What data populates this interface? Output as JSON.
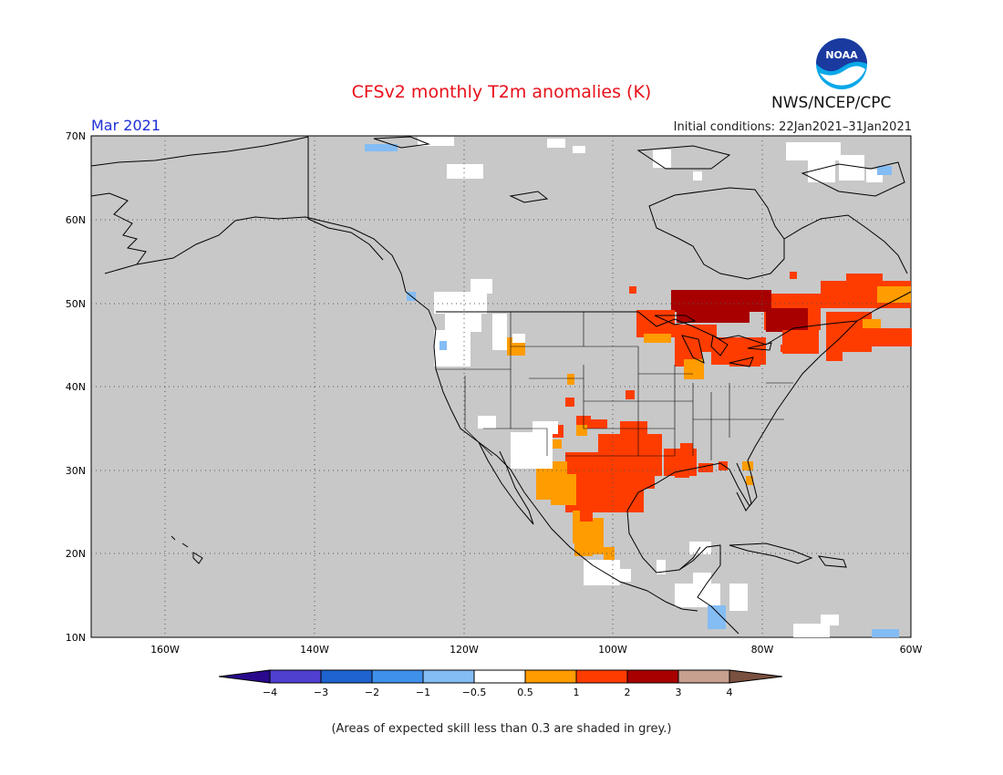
{
  "title": "CFSv2 monthly T2m anomalies (K)",
  "period": "Mar 2021",
  "initial_conditions": "Initial conditions: 22Jan2021–31Jan2021",
  "agency": "NWS/NCEP/CPC",
  "logo": {
    "name": "noaa-logo",
    "text": "NOAA"
  },
  "lat_labels": [
    "70N",
    "60N",
    "50N",
    "40N",
    "30N",
    "20N",
    "10N"
  ],
  "lon_labels": [
    "160W",
    "140W",
    "120W",
    "100W",
    "80W",
    "60W"
  ],
  "legend": {
    "labels": [
      "−4",
      "−3",
      "−2",
      "−1",
      "−0.5",
      "0.5",
      "1",
      "2",
      "3",
      "4"
    ],
    "colors": [
      "#2a0a8c",
      "#5040d0",
      "#1f63d0",
      "#3f90ea",
      "#84bcf4",
      "#ffffff",
      "#ff9c00",
      "#ff3c00",
      "#a80000",
      "#c8a090",
      "#7a5040"
    ]
  },
  "footnote": "(Areas of expected skill less than 0.3 are shaded in grey.)",
  "colors": {
    "skill_grey": "#c8c8c8",
    "neutral": "#ffffff",
    "warm1": "#ff9c00",
    "warm2": "#ff3c00",
    "warm3": "#a80000",
    "cool1": "#84bcf4",
    "coast": "#000000"
  }
}
